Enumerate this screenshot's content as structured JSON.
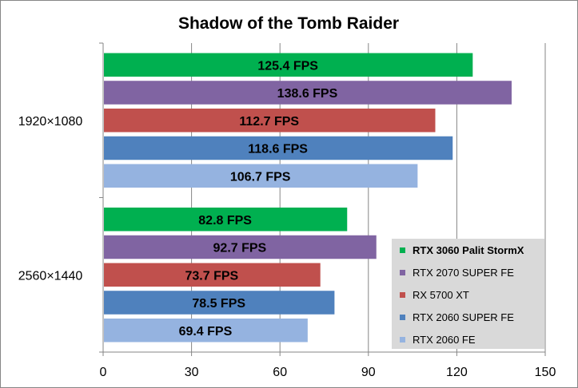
{
  "chart_data": {
    "type": "bar",
    "orientation": "horizontal",
    "title": "Shadow of the Tomb Raider",
    "categories": [
      "1920×1080",
      "2560×1440"
    ],
    "series": [
      {
        "name": "RTX 3060 Palit StormX",
        "color": "#00b050",
        "values": [
          125.4,
          82.8
        ],
        "labels": [
          "125.4 FPS",
          "82.8 FPS"
        ],
        "legend_bold": true
      },
      {
        "name": "RTX 2070 SUPER FE",
        "color": "#8064a2",
        "values": [
          138.6,
          92.7
        ],
        "labels": [
          "138.6 FPS",
          "92.7 FPS"
        ]
      },
      {
        "name": "RX 5700 XT",
        "color": "#c0504d",
        "values": [
          112.7,
          73.7
        ],
        "labels": [
          "112.7 FPS",
          "73.7 FPS"
        ]
      },
      {
        "name": "RTX 2060 SUPER FE",
        "color": "#4f81bd",
        "values": [
          118.6,
          78.5
        ],
        "labels": [
          "118.6 FPS",
          "78.5 FPS"
        ]
      },
      {
        "name": "RTX 2060 FE",
        "color": "#95b3e0",
        "values": [
          106.7,
          69.4
        ],
        "labels": [
          "106.7 FPS",
          "69.4 FPS"
        ]
      }
    ],
    "xlim": [
      0,
      150
    ],
    "xticks": [
      "0",
      "30",
      "60",
      "90",
      "120",
      "150"
    ],
    "grid": true,
    "legend_position": "bottom-right",
    "xlabel": "",
    "ylabel": ""
  }
}
